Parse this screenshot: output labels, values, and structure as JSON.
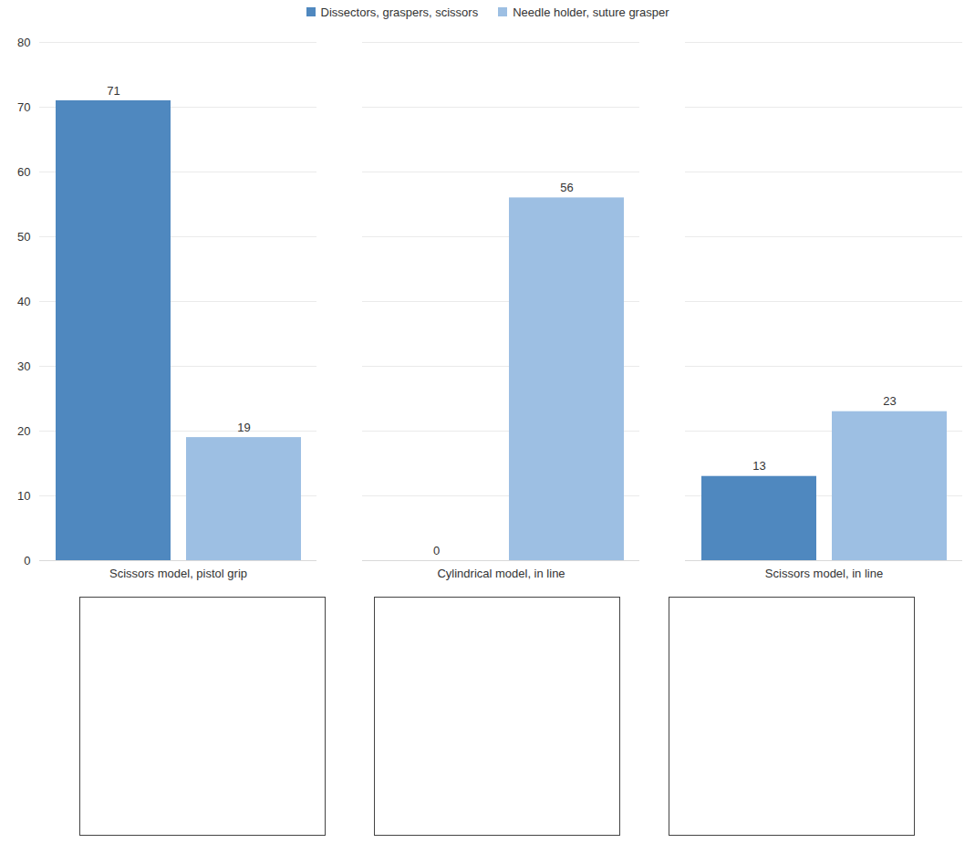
{
  "chart_data": {
    "type": "bar",
    "categories": [
      "Scissors model, pistol grip",
      "Cylindrical model, in line",
      "Scissors model, in line"
    ],
    "series": [
      {
        "name": "Dissectors, graspers, scissors",
        "color": "#4f88bf",
        "values": [
          71,
          0,
          13
        ]
      },
      {
        "name": "Needle holder, suture grasper",
        "color": "#9dbfe3",
        "values": [
          19,
          56,
          23
        ]
      }
    ],
    "ylim": [
      0,
      80
    ],
    "yticks": [
      0,
      10,
      20,
      30,
      40,
      50,
      60,
      70,
      80
    ],
    "grid": true,
    "legend": "top",
    "data_labels": true
  }
}
